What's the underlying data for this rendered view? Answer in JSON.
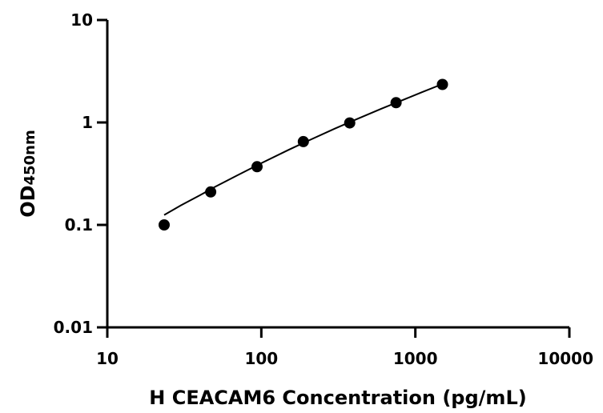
{
  "chart_data": {
    "type": "scatter",
    "title": "",
    "xlabel": "H CEACAM6 Concentration (pg/mL)",
    "ylabel_main": "OD",
    "ylabel_sub": "450nm",
    "x_scale": "log",
    "y_scale": "log",
    "xlim": [
      10,
      10000
    ],
    "ylim": [
      0.01,
      10
    ],
    "x_ticks": [
      "10",
      "100",
      "1000",
      "10000"
    ],
    "y_ticks": [
      "0.01",
      "0.1",
      "1",
      "10"
    ],
    "grid": false,
    "legend": "none",
    "series": [
      {
        "x": [
          23.4,
          46.9,
          93.8,
          187.5,
          375,
          750,
          1500
        ],
        "y": [
          0.1,
          0.21,
          0.37,
          0.65,
          0.99,
          1.56,
          2.35
        ]
      }
    ],
    "fit_curve": {
      "x": [
        23.4,
        30,
        40,
        50,
        70,
        100,
        150,
        200,
        300,
        400,
        600,
        800,
        1100,
        1500
      ],
      "y": [
        0.125,
        0.155,
        0.195,
        0.235,
        0.305,
        0.4,
        0.54,
        0.66,
        0.87,
        1.05,
        1.36,
        1.62,
        1.97,
        2.37
      ]
    }
  }
}
